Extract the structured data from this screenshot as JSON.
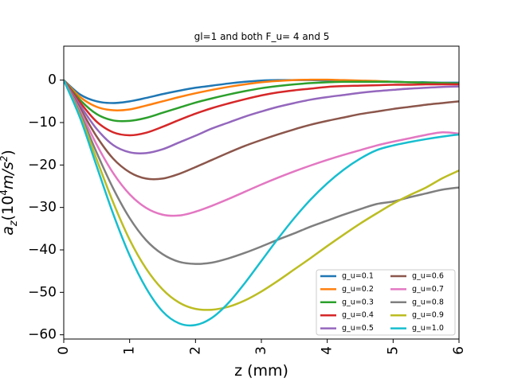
{
  "chart_data": {
    "type": "line",
    "title": "gl=1 and both F_u= 4 and 5",
    "xlabel": "z (mm)",
    "ylabel": "a_z(10⁴m/s²)",
    "ylabel_parts": {
      "base": "a",
      "sub": "z",
      "open": "(10",
      "sup1": "4",
      "mid": "m/s",
      "sup2": "2",
      "close": ")"
    },
    "xlim": [
      0,
      6
    ],
    "ylim": [
      -61,
      8
    ],
    "xticks": [
      0,
      1,
      2,
      3,
      4,
      5,
      6
    ],
    "yticks": [
      0,
      -10,
      -20,
      -30,
      -40,
      -50,
      -60
    ],
    "ytick_labels": [
      "0",
      "−10",
      "−20",
      "−30",
      "−40",
      "−50",
      "−60"
    ],
    "grid": false,
    "legend": {
      "placement": "lower-right",
      "columns": 2
    },
    "x": [
      0,
      0.25,
      0.5,
      0.75,
      1.0,
      1.25,
      1.5,
      1.75,
      2.0,
      2.25,
      2.5,
      2.75,
      3.0,
      3.25,
      3.5,
      3.75,
      4.0,
      4.25,
      4.5,
      4.75,
      5.0,
      5.25,
      5.5,
      5.75,
      6.0
    ],
    "series": [
      {
        "name": "g_u=0.1",
        "color": "#1f77b4",
        "values": [
          0,
          -3.4,
          -5.0,
          -5.4,
          -5.0,
          -4.2,
          -3.3,
          -2.5,
          -1.8,
          -1.3,
          -0.8,
          -0.4,
          -0.1,
          0.0,
          0.0,
          0.0,
          -0.1,
          -0.1,
          -0.2,
          -0.3,
          -0.4,
          -0.5,
          -0.5,
          -0.6,
          -0.6
        ]
      },
      {
        "name": "g_u=0.2",
        "color": "#ff7f0e",
        "values": [
          0,
          -4.0,
          -6.3,
          -7.1,
          -6.9,
          -6.0,
          -5.0,
          -4.0,
          -3.1,
          -2.3,
          -1.6,
          -1.0,
          -0.5,
          -0.2,
          0.0,
          0.1,
          0.1,
          0.0,
          -0.1,
          -0.2,
          -0.4,
          -0.5,
          -0.6,
          -0.7,
          -0.8
        ]
      },
      {
        "name": "g_u=0.3",
        "color": "#2ca02c",
        "values": [
          0,
          -4.7,
          -8.0,
          -9.5,
          -9.6,
          -8.9,
          -7.7,
          -6.5,
          -5.3,
          -4.3,
          -3.4,
          -2.6,
          -1.9,
          -1.4,
          -1.0,
          -0.7,
          -0.5,
          -0.4,
          -0.4,
          -0.4,
          -0.4,
          -0.5,
          -0.6,
          -0.7,
          -0.8
        ]
      },
      {
        "name": "g_u=0.4",
        "color": "#d62728",
        "values": [
          0,
          -5.3,
          -9.8,
          -12.3,
          -13.0,
          -12.4,
          -11.0,
          -9.4,
          -7.9,
          -6.6,
          -5.5,
          -4.5,
          -3.6,
          -2.9,
          -2.4,
          -2.0,
          -1.6,
          -1.4,
          -1.3,
          -1.2,
          -1.1,
          -1.1,
          -1.0,
          -1.0,
          -1.0
        ]
      },
      {
        "name": "g_u=0.5",
        "color": "#9467bd",
        "values": [
          0,
          -6.0,
          -11.5,
          -15.3,
          -17.0,
          -17.2,
          -16.3,
          -14.7,
          -13.1,
          -11.4,
          -10.0,
          -8.6,
          -7.4,
          -6.3,
          -5.4,
          -4.6,
          -4.0,
          -3.5,
          -3.0,
          -2.6,
          -2.3,
          -2.0,
          -1.8,
          -1.6,
          -1.5
        ]
      },
      {
        "name": "g_u=0.6",
        "color": "#8c564b",
        "values": [
          0,
          -6.7,
          -13.3,
          -18.5,
          -21.7,
          -23.2,
          -23.2,
          -22.1,
          -20.5,
          -18.8,
          -17.1,
          -15.5,
          -14.1,
          -12.8,
          -11.6,
          -10.5,
          -9.6,
          -8.8,
          -8.0,
          -7.4,
          -6.8,
          -6.3,
          -5.8,
          -5.4,
          -5.0
        ]
      },
      {
        "name": "g_u=0.7",
        "color": "#e377c2",
        "values": [
          0,
          -7.3,
          -15.2,
          -21.9,
          -26.9,
          -30.1,
          -31.7,
          -31.9,
          -31.0,
          -29.6,
          -28.0,
          -26.3,
          -24.6,
          -23.0,
          -21.5,
          -20.1,
          -18.8,
          -17.6,
          -16.5,
          -15.4,
          -14.5,
          -13.7,
          -12.9,
          -12.3,
          -12.6
        ]
      },
      {
        "name": "g_u=0.8",
        "color": "#7f7f7f",
        "values": [
          0,
          -7.9,
          -17.1,
          -25.5,
          -32.5,
          -37.7,
          -41.0,
          -42.8,
          -43.3,
          -43.0,
          -42.0,
          -40.7,
          -39.2,
          -37.6,
          -36.1,
          -34.5,
          -33.1,
          -31.7,
          -30.4,
          -29.2,
          -28.6,
          -27.6,
          -26.7,
          -25.8,
          -25.3
        ]
      },
      {
        "name": "g_u=0.9",
        "color": "#bcbd22",
        "values": [
          0,
          -8.5,
          -18.7,
          -28.8,
          -37.6,
          -44.4,
          -49.3,
          -52.4,
          -53.9,
          -54.1,
          -53.4,
          -51.9,
          -49.8,
          -47.3,
          -44.6,
          -41.9,
          -39.1,
          -36.4,
          -33.8,
          -31.4,
          -29.1,
          -27.1,
          -25.3,
          -23.1,
          -21.3
        ]
      },
      {
        "name": "g_u=1.0",
        "color": "#17becf",
        "values": [
          0,
          -9.0,
          -20.3,
          -31.5,
          -41.3,
          -49.0,
          -54.5,
          -57.3,
          -57.7,
          -56.0,
          -52.5,
          -47.8,
          -42.6,
          -37.4,
          -32.5,
          -28.1,
          -24.3,
          -21.1,
          -18.5,
          -16.5,
          -15.4,
          -14.6,
          -13.9,
          -13.3,
          -12.8
        ]
      }
    ]
  }
}
